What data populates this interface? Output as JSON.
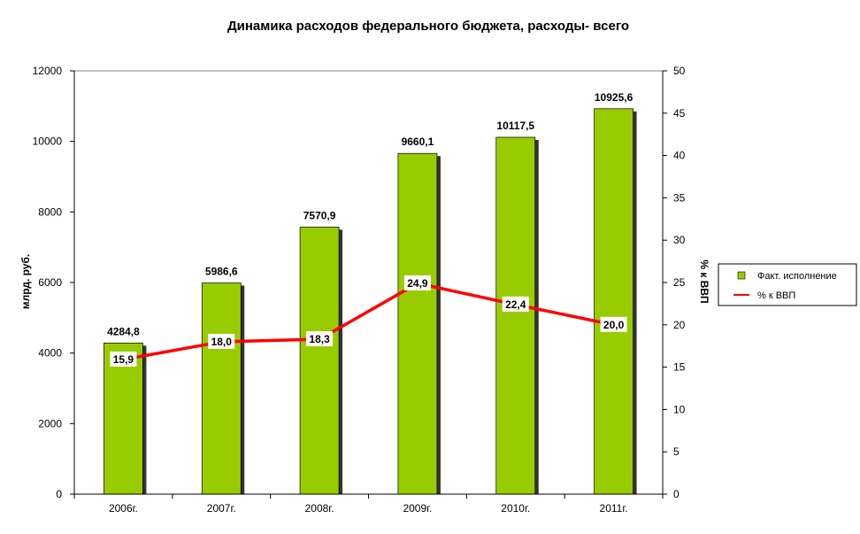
{
  "chart_data": {
    "type": "bar+line",
    "title": "Динамика расходов федерального бюджета, расходы- всего",
    "categories": [
      "2006г.",
      "2007г.",
      "2008г.",
      "2009г.",
      "2010г.",
      "2011г."
    ],
    "series": [
      {
        "name": "Факт. исполнение",
        "type": "bar",
        "axis": "left",
        "values": [
          4284.8,
          5986.6,
          7570.9,
          9660.1,
          10117.5,
          10925.6
        ],
        "labels": [
          "4284,8",
          "5986,6",
          "7570,9",
          "9660,1",
          "10117,5",
          "10925,6"
        ],
        "color": "#99cc00"
      },
      {
        "name": "% к ВВП",
        "type": "line",
        "axis": "right",
        "values": [
          15.9,
          18.0,
          18.3,
          24.9,
          22.4,
          20.0
        ],
        "labels": [
          "15,9",
          "18,0",
          "18,3",
          "24,9",
          "22,4",
          "20,0"
        ],
        "color": "#ff0000"
      }
    ],
    "ylabel": "млрд. руб.",
    "y2label": "% к ВВП",
    "ylim": [
      0,
      12000
    ],
    "y2lim": [
      0,
      50
    ],
    "yticks": [
      0,
      2000,
      4000,
      6000,
      8000,
      10000,
      12000
    ],
    "y2ticks": [
      0,
      5,
      10,
      15,
      20,
      25,
      30,
      35,
      40,
      45,
      50
    ],
    "grid": false,
    "legend_position": "right"
  }
}
